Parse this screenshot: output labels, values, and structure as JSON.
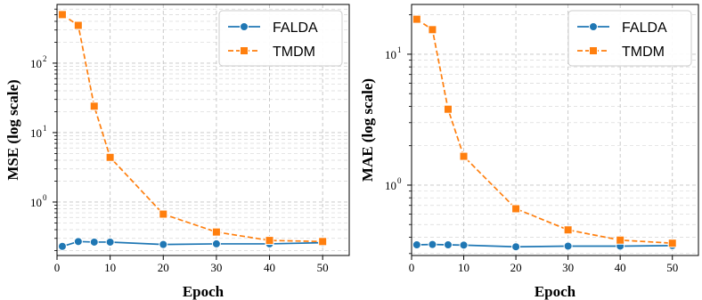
{
  "chart_data": [
    {
      "type": "line",
      "xlabel": "Epoch",
      "ylabel": "MSE (log scale)",
      "yscale": "log",
      "xlim": [
        0,
        55
      ],
      "ylim": [
        0.17,
        700
      ],
      "x_ticks": [
        0,
        10,
        20,
        30,
        40,
        50
      ],
      "y_ticks": [
        {
          "value": 1,
          "label": "10",
          "exp": "0"
        },
        {
          "value": 10,
          "label": "10",
          "exp": "1"
        },
        {
          "value": 100,
          "label": "10",
          "exp": "2"
        }
      ],
      "grid": true,
      "legend": "top-right",
      "series": [
        {
          "name": "FALDA",
          "color": "#1f77b4",
          "marker": "circle",
          "linestyle": "solid",
          "x": [
            1,
            4,
            7,
            10,
            20,
            30,
            40,
            50
          ],
          "values": [
            0.23,
            0.27,
            0.265,
            0.265,
            0.245,
            0.25,
            0.25,
            0.26
          ]
        },
        {
          "name": "TMDM",
          "color": "#ff7f0e",
          "marker": "square",
          "linestyle": "dashed",
          "x": [
            1,
            4,
            7,
            10,
            20,
            30,
            40,
            50
          ],
          "values": [
            500,
            350,
            24,
            4.4,
            0.67,
            0.37,
            0.28,
            0.27
          ]
        }
      ]
    },
    {
      "type": "line",
      "xlabel": "Epoch",
      "ylabel": "MAE (log scale)",
      "yscale": "log",
      "xlim": [
        0,
        55
      ],
      "ylim": [
        0.29,
        24
      ],
      "x_ticks": [
        0,
        10,
        20,
        30,
        40,
        50
      ],
      "y_ticks": [
        {
          "value": 1,
          "label": "10",
          "exp": "0"
        },
        {
          "value": 10,
          "label": "10",
          "exp": "1"
        }
      ],
      "grid": true,
      "legend": "top-right",
      "series": [
        {
          "name": "FALDA",
          "color": "#1f77b4",
          "marker": "circle",
          "linestyle": "solid",
          "x": [
            1,
            4,
            7,
            10,
            20,
            30,
            40,
            50
          ],
          "values": [
            0.35,
            0.352,
            0.35,
            0.348,
            0.338,
            0.342,
            0.342,
            0.345
          ]
        },
        {
          "name": "TMDM",
          "color": "#ff7f0e",
          "marker": "square",
          "linestyle": "dashed",
          "x": [
            1,
            4,
            7,
            10,
            20,
            30,
            40,
            50
          ],
          "values": [
            18.5,
            15.4,
            3.8,
            1.66,
            0.66,
            0.455,
            0.38,
            0.36
          ]
        }
      ]
    }
  ]
}
